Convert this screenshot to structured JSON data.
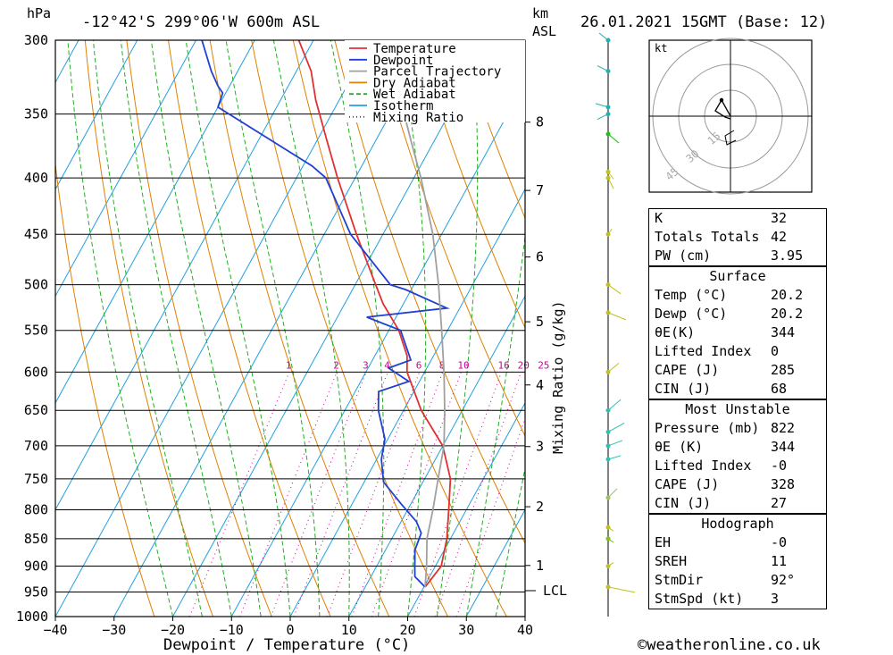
{
  "header": {
    "pressure_unit": "hPa",
    "location": "-12°42'S  299°06'W  600m  ASL",
    "height_unit": "km",
    "height_ref": "ASL",
    "datetime": "26.01.2021  15GMT  (Base: 12)"
  },
  "footer": {
    "xlabel": "Dewpoint / Temperature (°C)",
    "copyright": "©weatheronline.co.uk",
    "mixing_axis_label": "Mixing Ratio (g/kg)",
    "lcl_label": "LCL"
  },
  "legend": [
    {
      "label": "Temperature",
      "color": "#e03030",
      "style": "solid"
    },
    {
      "label": "Dewpoint",
      "color": "#2040d0",
      "style": "solid"
    },
    {
      "label": "Parcel Trajectory",
      "color": "#a0a0a0",
      "style": "solid"
    },
    {
      "label": "Dry Adiabat",
      "color": "#e08000",
      "style": "solid"
    },
    {
      "label": "Wet Adiabat",
      "color": "#20b020",
      "style": "dashed"
    },
    {
      "label": "Isotherm",
      "color": "#20a0e0",
      "style": "solid"
    },
    {
      "label": "Mixing Ratio",
      "color": "#cc0099",
      "style": "dotted"
    }
  ],
  "hodograph": {
    "unit_label": "kt",
    "ring_labels": [
      "15",
      "30",
      "45"
    ]
  },
  "indices": {
    "top": [
      {
        "name": "K",
        "value": "32"
      },
      {
        "name": "Totals Totals",
        "value": "42"
      },
      {
        "name": "PW (cm)",
        "value": "3.95"
      }
    ],
    "surface": {
      "title": "Surface",
      "rows": [
        {
          "name": "Temp (°C)",
          "value": "20.2"
        },
        {
          "name": "Dewp (°C)",
          "value": "20.2"
        },
        {
          "name": "θE(K)",
          "value": "344"
        },
        {
          "name": "Lifted Index",
          "value": "0"
        },
        {
          "name": "CAPE (J)",
          "value": "285"
        },
        {
          "name": "CIN (J)",
          "value": "68"
        }
      ]
    },
    "most_unstable": {
      "title": "Most Unstable",
      "rows": [
        {
          "name": "Pressure (mb)",
          "value": "822"
        },
        {
          "name": "θE (K)",
          "value": "344"
        },
        {
          "name": "Lifted Index",
          "value": "-0"
        },
        {
          "name": "CAPE (J)",
          "value": "328"
        },
        {
          "name": "CIN (J)",
          "value": "27"
        }
      ]
    },
    "hodograph": {
      "title": "Hodograph",
      "rows": [
        {
          "name": "EH",
          "value": "-0"
        },
        {
          "name": "SREH",
          "value": "11"
        },
        {
          "name": "StmDir",
          "value": "92°"
        },
        {
          "name": "StmSpd (kt)",
          "value": "3"
        }
      ]
    }
  },
  "chart_data": {
    "type": "line",
    "title": "-12°42'S  299°06'W  600m  ASL",
    "xlabel": "Dewpoint / Temperature (°C)",
    "ylabel": "hPa",
    "xlim": [
      -40,
      40
    ],
    "ylim": [
      1000,
      300
    ],
    "x_ticks": [
      "-40",
      "-30",
      "-20",
      "-10",
      "0",
      "10",
      "20",
      "30",
      "40"
    ],
    "pressure_levels": [
      "300",
      "350",
      "400",
      "450",
      "500",
      "550",
      "600",
      "650",
      "700",
      "750",
      "800",
      "850",
      "900",
      "950",
      "1000"
    ],
    "height_ticks_km": [
      "8",
      "7",
      "6",
      "5",
      "4",
      "3",
      "2",
      "1"
    ],
    "mixing_ratio_labels": [
      "1",
      "2",
      "3",
      "4",
      "6",
      "8",
      "10",
      "16",
      "20",
      "25"
    ],
    "series": [
      {
        "name": "Temperature",
        "points": [
          [
            940,
            20.2
          ],
          [
            900,
            21.0
          ],
          [
            850,
            19.4
          ],
          [
            800,
            17.0
          ],
          [
            750,
            14.4
          ],
          [
            700,
            10.0
          ],
          [
            650,
            3.0
          ],
          [
            600,
            -3.0
          ],
          [
            580,
            -4.5
          ],
          [
            550,
            -8.3
          ],
          [
            520,
            -13.5
          ],
          [
            500,
            -16.5
          ],
          [
            450,
            -24.5
          ],
          [
            400,
            -33.0
          ],
          [
            370,
            -38.3
          ],
          [
            340,
            -44.0
          ],
          [
            320,
            -47.5
          ],
          [
            300,
            -52.5
          ]
        ]
      },
      {
        "name": "Dewpoint",
        "points": [
          [
            940,
            20.2
          ],
          [
            920,
            17.5
          ],
          [
            900,
            16.5
          ],
          [
            870,
            15.0
          ],
          [
            840,
            14.5
          ],
          [
            820,
            12.6
          ],
          [
            790,
            8.3
          ],
          [
            755,
            3.3
          ],
          [
            720,
            0.8
          ],
          [
            690,
            -0.5
          ],
          [
            650,
            -4.3
          ],
          [
            625,
            -6.0
          ],
          [
            612,
            -1.8
          ],
          [
            595,
            -6.5
          ],
          [
            585,
            -3.5
          ],
          [
            550,
            -8.0
          ],
          [
            535,
            -15.0
          ],
          [
            525,
            -2.2
          ],
          [
            505,
            -11.0
          ],
          [
            500,
            -14.0
          ],
          [
            450,
            -25.5
          ],
          [
            400,
            -35.0
          ],
          [
            390,
            -38.5
          ],
          [
            345,
            -60.0
          ],
          [
            335,
            -60.5
          ],
          [
            330,
            -62.0
          ],
          [
            320,
            -64.5
          ],
          [
            300,
            -69.0
          ]
        ]
      },
      {
        "name": "Parcel Trajectory",
        "points": [
          [
            940,
            20.2
          ],
          [
            900,
            18.5
          ],
          [
            850,
            16.0
          ],
          [
            800,
            14.3
          ],
          [
            750,
            12.3
          ],
          [
            700,
            10.2
          ],
          [
            650,
            7.0
          ],
          [
            600,
            3.3
          ],
          [
            550,
            -1.0
          ],
          [
            500,
            -5.8
          ],
          [
            450,
            -11.5
          ],
          [
            400,
            -18.8
          ],
          [
            370,
            -24.0
          ],
          [
            330,
            -31.5
          ]
        ]
      }
    ]
  }
}
